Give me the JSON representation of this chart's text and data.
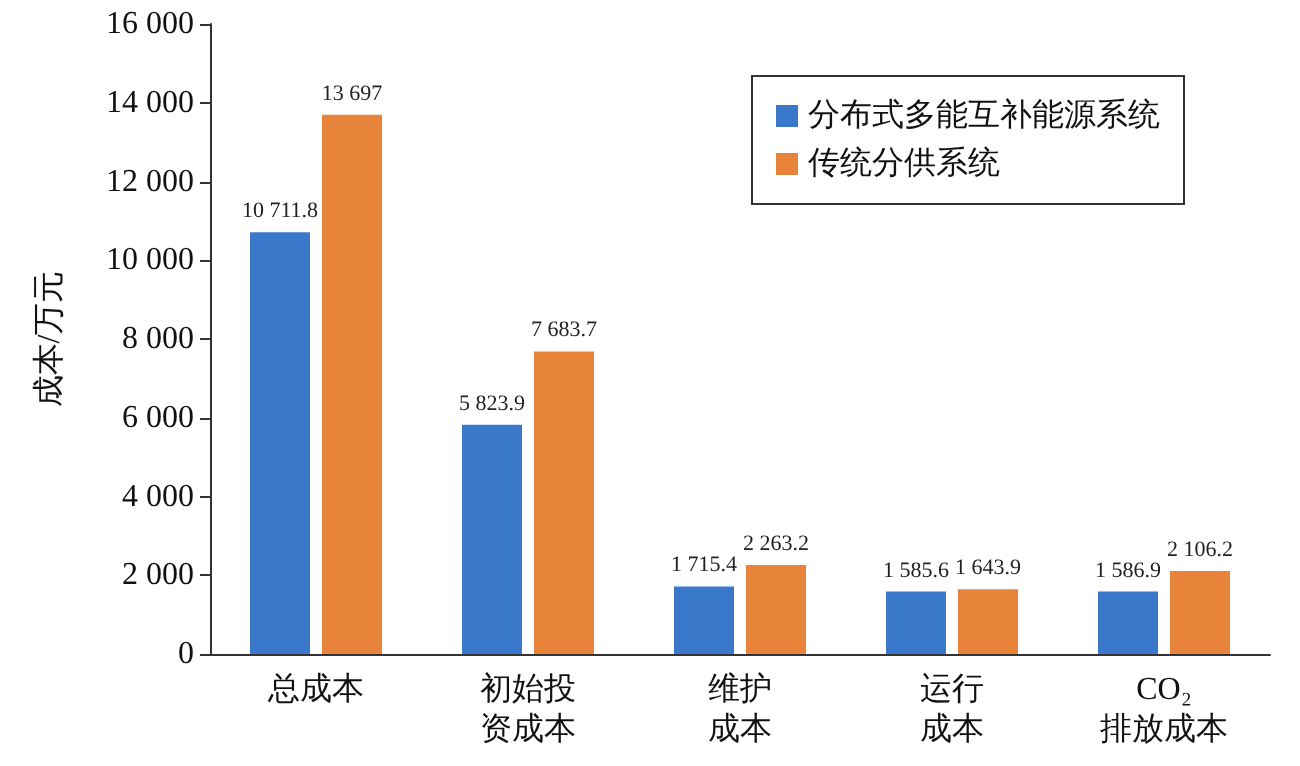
{
  "chart_data": {
    "type": "bar",
    "ylabel": "成本/万元",
    "categories": [
      "总成本",
      "初始投资成本",
      "维护成本",
      "运行成本",
      "CO₂\n排放成本"
    ],
    "series": [
      {
        "name": "分布式多能互补能源系统",
        "color": "#3a78c9",
        "values": [
          10711.8,
          5823.9,
          1715.4,
          1585.6,
          1586.9
        ],
        "value_labels": [
          "10 711.8",
          "5 823.9",
          "1 715.4",
          "1 585.6",
          "1 586.9"
        ]
      },
      {
        "name": "传统分供系统",
        "color": "#e8833a",
        "values": [
          13697,
          7683.7,
          2263.2,
          1643.9,
          2106.2
        ],
        "value_labels": [
          "13 697",
          "7 683.7",
          "2 263.2",
          "1 643.9",
          "2 106.2"
        ]
      }
    ],
    "ylim": [
      0,
      16000
    ],
    "yticks": [
      0,
      {
        "value": 2000,
        "label": "2 000"
      },
      {
        "value": 4000,
        "label": "4 000"
      },
      {
        "value": 6000,
        "label": "6 000"
      },
      {
        "value": 8000,
        "label": "8 000"
      },
      {
        "value": 10000,
        "label": "10 000"
      },
      {
        "value": 12000,
        "label": "12 000"
      },
      {
        "value": 14000,
        "label": "14 000"
      },
      {
        "value": 16000,
        "label": "16 000"
      }
    ],
    "grid": false,
    "legend": "top right"
  }
}
